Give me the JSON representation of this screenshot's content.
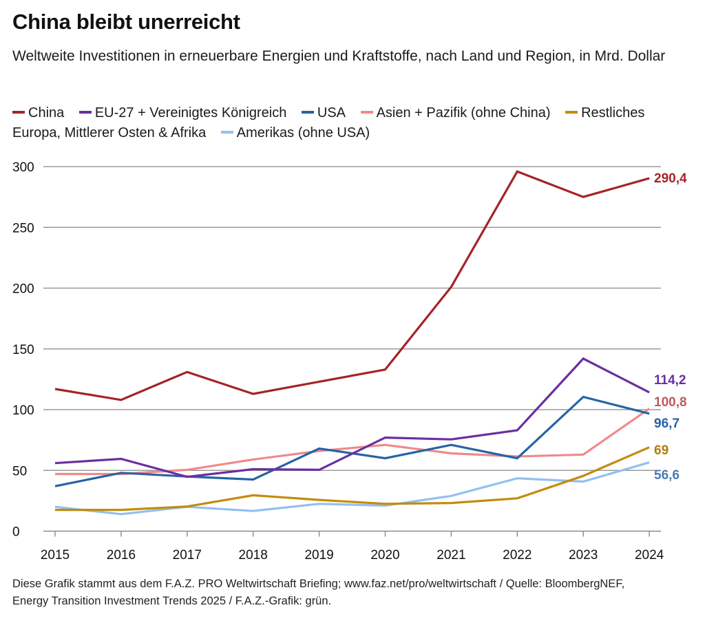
{
  "header": {
    "title": "China bleibt unerreicht",
    "subtitle": "Weltweite Investitionen in erneuerbare Energien und Kraftstoffe, nach Land und Region, in Mrd. Dollar"
  },
  "footer": {
    "line1": "Diese Grafik stammt aus dem F.A.Z. PRO Weltwirtschaft Briefing; www.faz.net/pro/weltwirtschaft / Quelle: BloombergNEF,",
    "line2": "Energy Transition Investment Trends 2025 / F.A.Z.-Grafik: grün."
  },
  "chart_data": {
    "type": "line",
    "title": "China bleibt unerreicht",
    "subtitle": "Weltweite Investitionen in erneuerbare Energien und Kraftstoffe, nach Land und Region, in Mrd. Dollar",
    "xlabel": "",
    "ylabel": "",
    "x": [
      "2015",
      "2016",
      "2017",
      "2018",
      "2019",
      "2020",
      "2021",
      "2022",
      "2023",
      "2024"
    ],
    "ylim": [
      0,
      300
    ],
    "yticks": [
      0,
      50,
      100,
      150,
      200,
      250,
      300
    ],
    "grid": true,
    "legend_position": "top",
    "series": [
      {
        "name": "China",
        "color": "#a52327",
        "label_color": "#a52327",
        "end_label": "290,4",
        "values": [
          117,
          108,
          131,
          113,
          123,
          133,
          201,
          296,
          275,
          290.4
        ]
      },
      {
        "name": "EU-27 + Vereinigtes Königreich",
        "color": "#6a2fa0",
        "label_color": "#6a2fa0",
        "end_label": "114,2",
        "values": [
          56,
          59.5,
          44.7,
          51,
          50.5,
          77,
          75.5,
          83,
          142,
          114.2
        ]
      },
      {
        "name": "USA",
        "color": "#2563a6",
        "label_color": "#2563a6",
        "end_label": "96,7",
        "values": [
          37,
          48,
          45,
          42.5,
          68,
          60,
          71,
          60,
          110.5,
          96.7
        ]
      },
      {
        "name": "Asien + Pazifik (ohne China)",
        "color": "#f0898c",
        "label_color": "#c0595e",
        "end_label": "100,8",
        "values": [
          47,
          47,
          50.5,
          59,
          66,
          71,
          64,
          61.5,
          63,
          100.8
        ]
      },
      {
        "name": "Restliches Europa, Mittlerer Osten & Afrika",
        "color": "#c28c0c",
        "label_color": "#b07d0a",
        "end_label": "69",
        "values": [
          17.5,
          17.5,
          20.3,
          29.5,
          25.7,
          22.5,
          23.2,
          27,
          45.5,
          69
        ]
      },
      {
        "name": "Amerikas (ohne USA)",
        "color": "#92bff0",
        "label_color": "#4a7bb0",
        "end_label": "56,6",
        "values": [
          20,
          14,
          20,
          16.6,
          22.5,
          21,
          29,
          43.5,
          40.8,
          56.6
        ]
      }
    ]
  }
}
